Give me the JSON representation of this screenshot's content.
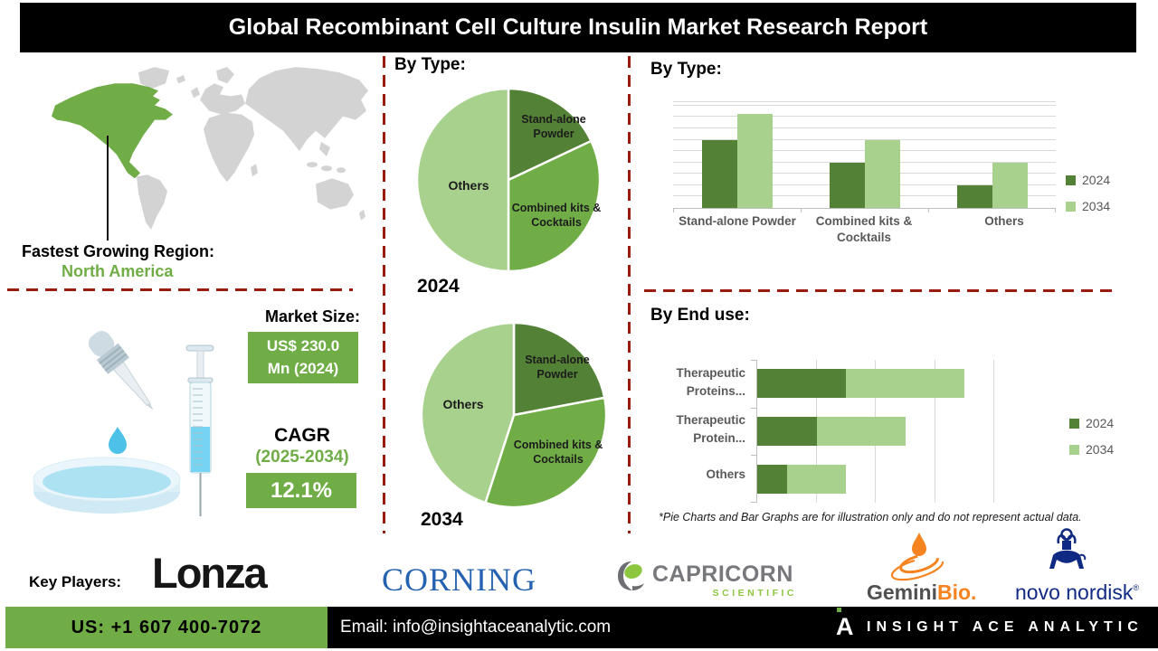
{
  "title": "Global Recombinant Cell Culture Insulin Market Research Report",
  "colors": {
    "accent_green": "#70AD47",
    "light_green": "#A9D18E",
    "dark_green": "#538135",
    "divider_red": "#9A1B10",
    "map_land": "#D3D3D3",
    "grid_gray": "#D9D9D9",
    "axis_gray": "#BFBFBF",
    "label_gray": "#595959"
  },
  "region": {
    "label": "Fastest Growing Region:",
    "value": "North America"
  },
  "market": {
    "heading": "Market Size:",
    "value_line1": "US$ 230.0",
    "value_line2": "Mn (2024)",
    "cagr_label": "CAGR",
    "cagr_period": "(2025-2034)",
    "cagr_value": "12.1%"
  },
  "mid": {
    "heading": "By Type:"
  },
  "right": {
    "bar_heading": "By Type:",
    "enduse_heading": "By End use:",
    "disclaimer": "*Pie Charts and Bar Graphs are for illustration only and do not represent actual data."
  },
  "chart_data": [
    {
      "type": "pie",
      "title": "By Type:",
      "year_label": "2024",
      "slices": [
        {
          "label": "Stand-alone Powder",
          "value": 18,
          "color": "#538135"
        },
        {
          "label": "Combined kits & Cocktails",
          "value": 32,
          "color": "#70AD47"
        },
        {
          "label": "Others",
          "value": 50,
          "color": "#A9D18E"
        }
      ],
      "note": "illustration only"
    },
    {
      "type": "pie",
      "title": "By Type:",
      "year_label": "2034",
      "slices": [
        {
          "label": "Stand-alone Powder",
          "value": 22,
          "color": "#538135"
        },
        {
          "label": "Combined kits & Cocktails",
          "value": 33,
          "color": "#70AD47"
        },
        {
          "label": "Others",
          "value": 45,
          "color": "#A9D18E"
        }
      ],
      "note": "illustration only"
    },
    {
      "type": "bar",
      "title": "By Type:",
      "categories": [
        "Stand-alone Powder",
        "Combined kits & Cocktails",
        "Others"
      ],
      "series": [
        {
          "name": "2024",
          "color": "#538135",
          "values": [
            6,
            4,
            2
          ]
        },
        {
          "name": "2034",
          "color": "#A9D18E",
          "values": [
            8.3,
            6,
            4
          ]
        }
      ],
      "ylim": [
        0,
        9.3
      ],
      "grid": true,
      "legend_position": "right",
      "note": "illustration only"
    },
    {
      "type": "stacked-bar-horizontal",
      "title": "By End use:",
      "categories": [
        "Therapeutic Proteins...",
        "Therapeutic Protein...",
        "Others"
      ],
      "series": [
        {
          "name": "2024",
          "color": "#538135",
          "values": [
            1.5,
            1,
            0.5
          ]
        },
        {
          "name": "2034",
          "color": "#A9D18E",
          "values": [
            2,
            1.5,
            1
          ]
        }
      ],
      "xlim": [
        0,
        4
      ],
      "grid": true,
      "legend_position": "right",
      "note": "illustration only"
    }
  ],
  "players": {
    "label": "Key Players:",
    "lonza": "Lonza",
    "corning": "CORNING",
    "capricorn_name": "CAPRICORN",
    "capricorn_sub": "SCIENTIFIC",
    "gemini_name": "Gemini",
    "gemini_bio": "Bio.",
    "novo": "novo nordisk",
    "novo_reg": "®"
  },
  "footer": {
    "phone": "US: +1 607 400-7072",
    "email": "Email: info@insightaceanalytic.com",
    "brand_letter": "A",
    "brand": "INSIGHT ACE ANALYTIC"
  }
}
